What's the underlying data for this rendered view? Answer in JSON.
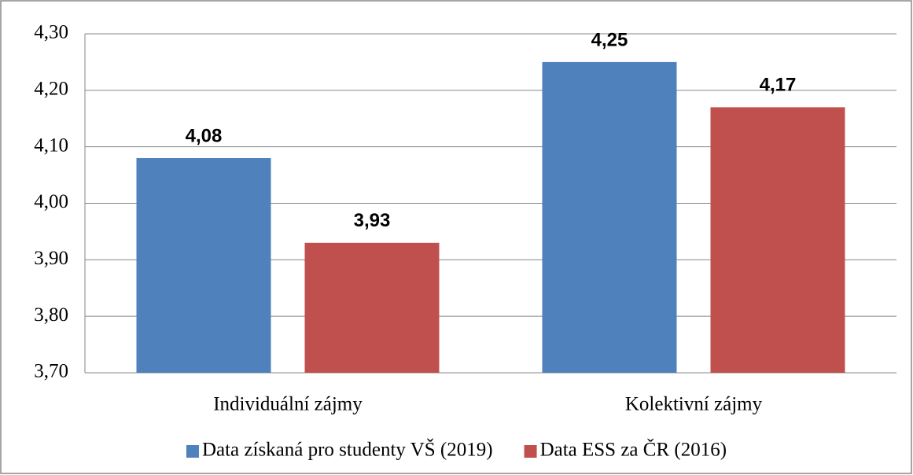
{
  "chart_data": {
    "type": "bar",
    "categories": [
      "Individuální zájmy",
      "Kolektivní zájmy"
    ],
    "series": [
      {
        "name": "Data získaná pro studenty VŠ (2019)",
        "color": "#4f81bd",
        "values": [
          4.08,
          4.25
        ],
        "value_labels": [
          "4,08",
          "4,25"
        ]
      },
      {
        "name": "Data ESS za ČR (2016)",
        "color": "#c0504d",
        "values": [
          3.93,
          4.17
        ],
        "value_labels": [
          "3,93",
          "4,17"
        ]
      }
    ],
    "ylim": [
      3.7,
      4.3
    ],
    "yticks": [
      {
        "value": 3.7,
        "label": "3,70"
      },
      {
        "value": 3.8,
        "label": "3,80"
      },
      {
        "value": 3.9,
        "label": "3,90"
      },
      {
        "value": 4.0,
        "label": "4,00"
      },
      {
        "value": 4.1,
        "label": "4,10"
      },
      {
        "value": 4.2,
        "label": "4,20"
      },
      {
        "value": 4.3,
        "label": "4,30"
      }
    ],
    "grid": true,
    "legend": "bottom"
  }
}
